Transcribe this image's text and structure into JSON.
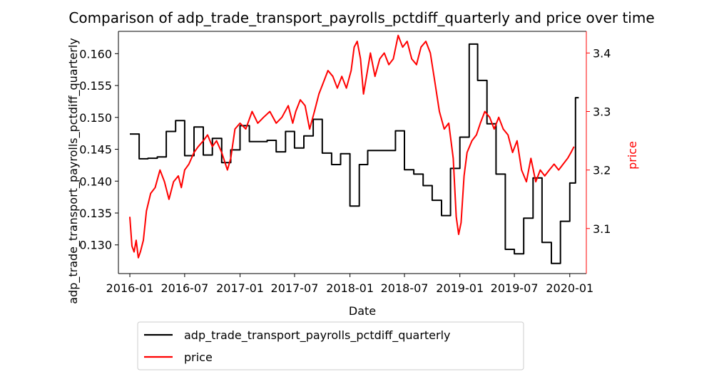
{
  "chart_data": {
    "type": "line",
    "title": "Comparison of adp_trade_transport_payrolls_pctdiff_quarterly and price over time",
    "xlabel": "Date",
    "ylabel_left": "adp_trade_transport_payrolls_pctdiff_quarterly",
    "ylabel_right": "price",
    "x_ticks": [
      "2016-01",
      "2016-07",
      "2017-01",
      "2017-07",
      "2018-01",
      "2018-07",
      "2019-01",
      "2019-07",
      "2020-01"
    ],
    "y_left_ticks": [
      0.13,
      0.135,
      0.14,
      0.145,
      0.15,
      0.155,
      0.16
    ],
    "y_left_range": [
      0.1255,
      0.1635
    ],
    "y_right_ticks": [
      3.1,
      3.2,
      3.3,
      3.4
    ],
    "y_right_range": [
      3.023,
      3.437
    ],
    "x_range": [
      "2015-11-24",
      "2020-02-25"
    ],
    "grid": false,
    "legend_position": "below",
    "series": [
      {
        "name": "adp_trade_transport_payrolls_pctdiff_quarterly",
        "axis": "left",
        "color": "#000000",
        "step": true,
        "points": [
          [
            "2016-01-01",
            0.1474
          ],
          [
            "2016-02-01",
            0.1435
          ],
          [
            "2016-03-01",
            0.1436
          ],
          [
            "2016-04-01",
            0.1438
          ],
          [
            "2016-05-01",
            0.1478
          ],
          [
            "2016-06-01",
            0.1495
          ],
          [
            "2016-07-01",
            0.144
          ],
          [
            "2016-08-01",
            0.1485
          ],
          [
            "2016-09-01",
            0.1441
          ],
          [
            "2016-10-01",
            0.1467
          ],
          [
            "2016-11-01",
            0.1429
          ],
          [
            "2016-12-01",
            0.1449
          ],
          [
            "2017-01-01",
            0.1487
          ],
          [
            "2017-02-01",
            0.1462
          ],
          [
            "2017-03-01",
            0.1462
          ],
          [
            "2017-04-01",
            0.1464
          ],
          [
            "2017-05-01",
            0.1446
          ],
          [
            "2017-06-01",
            0.1478
          ],
          [
            "2017-07-01",
            0.1452
          ],
          [
            "2017-08-01",
            0.1471
          ],
          [
            "2017-09-01",
            0.1497
          ],
          [
            "2017-10-01",
            0.1444
          ],
          [
            "2017-11-01",
            0.1426
          ],
          [
            "2017-12-01",
            0.1443
          ],
          [
            "2018-01-01",
            0.1361
          ],
          [
            "2018-02-01",
            0.1426
          ],
          [
            "2018-03-01",
            0.1448
          ],
          [
            "2018-04-01",
            0.1448
          ],
          [
            "2018-05-01",
            0.1448
          ],
          [
            "2018-06-01",
            0.1479
          ],
          [
            "2018-07-01",
            0.1418
          ],
          [
            "2018-08-01",
            0.1411
          ],
          [
            "2018-09-01",
            0.1393
          ],
          [
            "2018-10-01",
            0.137
          ],
          [
            "2018-11-01",
            0.1346
          ],
          [
            "2018-12-01",
            0.142
          ],
          [
            "2019-01-01",
            0.1469
          ],
          [
            "2019-02-01",
            0.1615
          ],
          [
            "2019-03-01",
            0.1558
          ],
          [
            "2019-04-01",
            0.149
          ],
          [
            "2019-05-01",
            0.1411
          ],
          [
            "2019-06-01",
            0.1293
          ],
          [
            "2019-07-01",
            0.1286
          ],
          [
            "2019-08-01",
            0.1342
          ],
          [
            "2019-09-01",
            0.1405
          ],
          [
            "2019-10-01",
            0.1304
          ],
          [
            "2019-11-01",
            0.1271
          ],
          [
            "2019-12-01",
            0.1337
          ],
          [
            "2020-01-01",
            0.1397
          ],
          [
            "2020-01-20",
            0.1531
          ],
          [
            "2020-01-31",
            0.1531
          ]
        ]
      },
      {
        "name": "price",
        "axis": "right",
        "color": "#ff0000",
        "step": false,
        "points": [
          [
            "2016-01-01",
            3.12
          ],
          [
            "2016-01-08",
            3.07
          ],
          [
            "2016-01-15",
            3.06
          ],
          [
            "2016-01-22",
            3.08
          ],
          [
            "2016-01-29",
            3.05
          ],
          [
            "2016-02-05",
            3.06
          ],
          [
            "2016-02-15",
            3.08
          ],
          [
            "2016-02-25",
            3.13
          ],
          [
            "2016-03-10",
            3.16
          ],
          [
            "2016-03-25",
            3.17
          ],
          [
            "2016-04-10",
            3.2
          ],
          [
            "2016-04-25",
            3.18
          ],
          [
            "2016-05-10",
            3.15
          ],
          [
            "2016-05-25",
            3.18
          ],
          [
            "2016-06-10",
            3.19
          ],
          [
            "2016-06-20",
            3.17
          ],
          [
            "2016-07-01",
            3.2
          ],
          [
            "2016-07-15",
            3.21
          ],
          [
            "2016-08-01",
            3.23
          ],
          [
            "2016-08-15",
            3.24
          ],
          [
            "2016-09-01",
            3.25
          ],
          [
            "2016-09-15",
            3.26
          ],
          [
            "2016-10-01",
            3.24
          ],
          [
            "2016-10-15",
            3.25
          ],
          [
            "2016-11-01",
            3.23
          ],
          [
            "2016-11-20",
            3.2
          ],
          [
            "2016-12-01",
            3.22
          ],
          [
            "2016-12-15",
            3.27
          ],
          [
            "2017-01-01",
            3.28
          ],
          [
            "2017-01-20",
            3.27
          ],
          [
            "2017-02-10",
            3.3
          ],
          [
            "2017-03-01",
            3.28
          ],
          [
            "2017-03-20",
            3.29
          ],
          [
            "2017-04-10",
            3.3
          ],
          [
            "2017-05-01",
            3.28
          ],
          [
            "2017-05-20",
            3.29
          ],
          [
            "2017-06-10",
            3.31
          ],
          [
            "2017-06-25",
            3.28
          ],
          [
            "2017-07-05",
            3.3
          ],
          [
            "2017-07-20",
            3.32
          ],
          [
            "2017-08-05",
            3.31
          ],
          [
            "2017-08-20",
            3.27
          ],
          [
            "2017-09-05",
            3.3
          ],
          [
            "2017-09-20",
            3.33
          ],
          [
            "2017-10-05",
            3.35
          ],
          [
            "2017-10-20",
            3.37
          ],
          [
            "2017-11-05",
            3.36
          ],
          [
            "2017-11-20",
            3.34
          ],
          [
            "2017-12-05",
            3.36
          ],
          [
            "2017-12-20",
            3.34
          ],
          [
            "2018-01-05",
            3.37
          ],
          [
            "2018-01-15",
            3.41
          ],
          [
            "2018-01-25",
            3.42
          ],
          [
            "2018-02-05",
            3.39
          ],
          [
            "2018-02-15",
            3.33
          ],
          [
            "2018-02-25",
            3.36
          ],
          [
            "2018-03-10",
            3.4
          ],
          [
            "2018-03-25",
            3.36
          ],
          [
            "2018-04-10",
            3.39
          ],
          [
            "2018-04-25",
            3.4
          ],
          [
            "2018-05-10",
            3.38
          ],
          [
            "2018-05-25",
            3.39
          ],
          [
            "2018-06-10",
            3.43
          ],
          [
            "2018-06-25",
            3.41
          ],
          [
            "2018-07-10",
            3.42
          ],
          [
            "2018-07-25",
            3.39
          ],
          [
            "2018-08-10",
            3.38
          ],
          [
            "2018-08-25",
            3.41
          ],
          [
            "2018-09-10",
            3.42
          ],
          [
            "2018-09-25",
            3.4
          ],
          [
            "2018-10-10",
            3.35
          ],
          [
            "2018-10-25",
            3.3
          ],
          [
            "2018-11-10",
            3.27
          ],
          [
            "2018-11-25",
            3.28
          ],
          [
            "2018-12-10",
            3.22
          ],
          [
            "2018-12-20",
            3.12
          ],
          [
            "2018-12-28",
            3.09
          ],
          [
            "2019-01-05",
            3.11
          ],
          [
            "2019-01-15",
            3.19
          ],
          [
            "2019-01-25",
            3.23
          ],
          [
            "2019-02-10",
            3.25
          ],
          [
            "2019-02-25",
            3.26
          ],
          [
            "2019-03-10",
            3.28
          ],
          [
            "2019-03-25",
            3.3
          ],
          [
            "2019-04-10",
            3.29
          ],
          [
            "2019-04-25",
            3.27
          ],
          [
            "2019-05-10",
            3.29
          ],
          [
            "2019-05-25",
            3.27
          ],
          [
            "2019-06-10",
            3.26
          ],
          [
            "2019-06-25",
            3.23
          ],
          [
            "2019-07-10",
            3.25
          ],
          [
            "2019-07-25",
            3.2
          ],
          [
            "2019-08-10",
            3.18
          ],
          [
            "2019-08-25",
            3.22
          ],
          [
            "2019-09-10",
            3.18
          ],
          [
            "2019-09-25",
            3.2
          ],
          [
            "2019-10-10",
            3.19
          ],
          [
            "2019-10-25",
            3.2
          ],
          [
            "2019-11-10",
            3.21
          ],
          [
            "2019-11-25",
            3.2
          ],
          [
            "2019-12-10",
            3.21
          ],
          [
            "2019-12-25",
            3.22
          ],
          [
            "2020-01-05",
            3.23
          ],
          [
            "2020-01-15",
            3.24
          ]
        ]
      }
    ]
  }
}
